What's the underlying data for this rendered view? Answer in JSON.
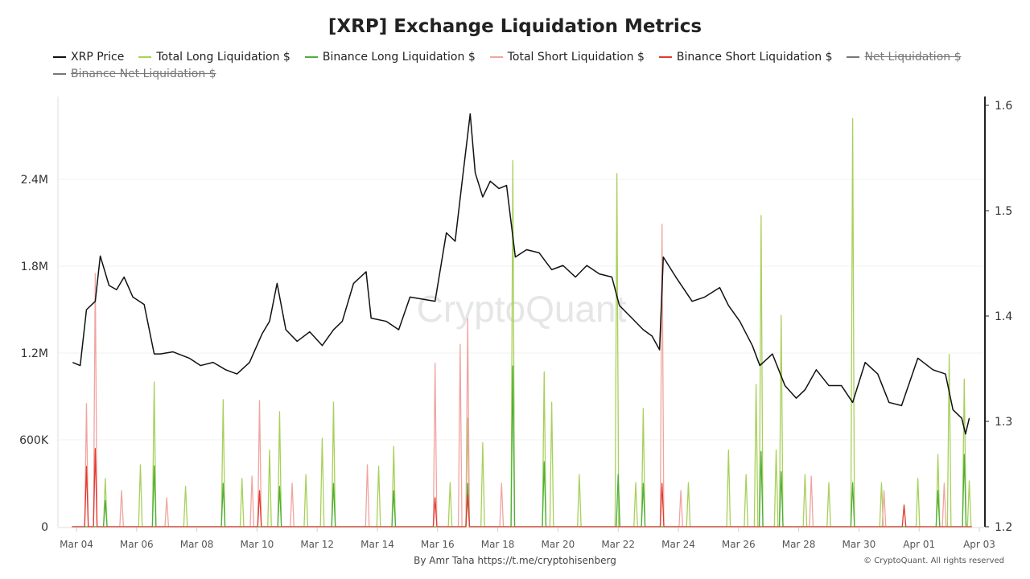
{
  "title": "[XRP] Exchange Liquidation Metrics",
  "legend": [
    {
      "label": "XRP Price",
      "color": "#111111",
      "hidden": false
    },
    {
      "label": "Total Long Liquidation $",
      "color": "#a8d05a",
      "hidden": false
    },
    {
      "label": "Binance Long Liquidation $",
      "color": "#4caf3a",
      "hidden": false
    },
    {
      "label": "Total Short Liquidation $",
      "color": "#f0a4a0",
      "hidden": false
    },
    {
      "label": "Binance Short Liquidation $",
      "color": "#e03b30",
      "hidden": false
    },
    {
      "label": "Net Liquidation $",
      "color": "#777777",
      "hidden": true
    },
    {
      "label": "Binance Net Liquidation $",
      "color": "#777777",
      "hidden": true
    }
  ],
  "watermark": "CryptoQuant",
  "credit": {
    "by": "By Amr Taha",
    "link": "https://t.me/cryptohisenberg"
  },
  "copyright": "© CryptoQuant. All rights reserved",
  "chart_data": {
    "type": "line",
    "grid": true,
    "legend_position": "top",
    "xlim": [
      "Mar 03 18:00",
      "Apr 03 06:00"
    ],
    "x_ticks": [
      "Mar 04",
      "Mar 06",
      "Mar 08",
      "Mar 10",
      "Mar 12",
      "Mar 14",
      "Mar 16",
      "Mar 18",
      "Mar 20",
      "Mar 22",
      "Mar 24",
      "Mar 26",
      "Mar 28",
      "Mar 30",
      "Apr 01",
      "Apr 03"
    ],
    "y_left": {
      "ticks": [
        0,
        600000,
        1200000,
        1800000,
        2400000
      ],
      "tick_labels": [
        "0",
        "600K",
        "1.2M",
        "1.8M",
        "2.4M"
      ],
      "range": [
        0,
        2950000
      ]
    },
    "y_right": {
      "ticks": [
        1.2,
        1.3,
        1.4,
        1.5,
        1.6
      ],
      "tick_labels": [
        "1.2",
        "1.3",
        "1.4",
        "1.5",
        "1.6"
      ],
      "range": [
        1.2,
        1.61
      ]
    },
    "series": [
      {
        "name": "XRP Price",
        "axis": "right",
        "color": "#111111",
        "points": [
          [
            "Mar 03 21:00",
            1.356
          ],
          [
            "Mar 04 03:00",
            1.353
          ],
          [
            "Mar 04 08:00",
            1.406
          ],
          [
            "Mar 04 15:00",
            1.414
          ],
          [
            "Mar 04 19:00",
            1.457
          ],
          [
            "Mar 05 02:00",
            1.429
          ],
          [
            "Mar 05 08:00",
            1.425
          ],
          [
            "Mar 05 14:00",
            1.437
          ],
          [
            "Mar 05 21:00",
            1.418
          ],
          [
            "Mar 06 06:00",
            1.411
          ],
          [
            "Mar 06 14:00",
            1.364
          ],
          [
            "Mar 06 19:00",
            1.364
          ],
          [
            "Mar 07 05:00",
            1.366
          ],
          [
            "Mar 07 18:00",
            1.36
          ],
          [
            "Mar 08 03:00",
            1.353
          ],
          [
            "Mar 08 13:00",
            1.356
          ],
          [
            "Mar 08 23:00",
            1.349
          ],
          [
            "Mar 09 08:00",
            1.345
          ],
          [
            "Mar 09 18:00",
            1.356
          ],
          [
            "Mar 10 04:00",
            1.383
          ],
          [
            "Mar 10 10:00",
            1.395
          ],
          [
            "Mar 10 16:00",
            1.431
          ],
          [
            "Mar 10 23:00",
            1.387
          ],
          [
            "Mar 11 08:00",
            1.376
          ],
          [
            "Mar 11 18:00",
            1.385
          ],
          [
            "Mar 12 04:00",
            1.372
          ],
          [
            "Mar 12 13:00",
            1.387
          ],
          [
            "Mar 12 20:00",
            1.395
          ],
          [
            "Mar 13 05:00",
            1.431
          ],
          [
            "Mar 13 15:00",
            1.442
          ],
          [
            "Mar 13 19:00",
            1.398
          ],
          [
            "Mar 14 07:00",
            1.395
          ],
          [
            "Mar 14 17:00",
            1.387
          ],
          [
            "Mar 15 02:00",
            1.418
          ],
          [
            "Mar 15 12:00",
            1.416
          ],
          [
            "Mar 15 22:00",
            1.414
          ],
          [
            "Mar 16 07:00",
            1.479
          ],
          [
            "Mar 16 14:00",
            1.471
          ],
          [
            "Mar 16 20:00",
            1.532
          ],
          [
            "Mar 17 02:00",
            1.592
          ],
          [
            "Mar 17 06:00",
            1.536
          ],
          [
            "Mar 17 12:00",
            1.513
          ],
          [
            "Mar 17 18:00",
            1.528
          ],
          [
            "Mar 18 01:00",
            1.521
          ],
          [
            "Mar 18 07:00",
            1.524
          ],
          [
            "Mar 18 14:00",
            1.456
          ],
          [
            "Mar 18 23:00",
            1.463
          ],
          [
            "Mar 19 09:00",
            1.46
          ],
          [
            "Mar 19 19:00",
            1.444
          ],
          [
            "Mar 20 04:00",
            1.448
          ],
          [
            "Mar 20 14:00",
            1.437
          ],
          [
            "Mar 20 23:00",
            1.448
          ],
          [
            "Mar 21 09:00",
            1.44
          ],
          [
            "Mar 21 19:00",
            1.437
          ],
          [
            "Mar 22 01:00",
            1.41
          ],
          [
            "Mar 22 11:00",
            1.398
          ],
          [
            "Mar 22 20:00",
            1.387
          ],
          [
            "Mar 23 03:00",
            1.381
          ],
          [
            "Mar 23 09:00",
            1.368
          ],
          [
            "Mar 23 12:00",
            1.456
          ],
          [
            "Mar 23 22:00",
            1.437
          ],
          [
            "Mar 24 11:00",
            1.414
          ],
          [
            "Mar 24 21:00",
            1.418
          ],
          [
            "Mar 25 09:00",
            1.427
          ],
          [
            "Mar 25 16:00",
            1.41
          ],
          [
            "Mar 26 01:00",
            1.395
          ],
          [
            "Mar 26 11:00",
            1.372
          ],
          [
            "Mar 26 17:00",
            1.353
          ],
          [
            "Mar 27 03:00",
            1.364
          ],
          [
            "Mar 27 13:00",
            1.334
          ],
          [
            "Mar 27 22:00",
            1.322
          ],
          [
            "Mar 28 05:00",
            1.33
          ],
          [
            "Mar 28 14:00",
            1.349
          ],
          [
            "Mar 29 00:00",
            1.334
          ],
          [
            "Mar 29 10:00",
            1.334
          ],
          [
            "Mar 29 19:00",
            1.318
          ],
          [
            "Mar 30 05:00",
            1.356
          ],
          [
            "Mar 30 15:00",
            1.345
          ],
          [
            "Mar 31 00:00",
            1.318
          ],
          [
            "Mar 31 10:00",
            1.315
          ],
          [
            "Mar 31 23:00",
            1.36
          ],
          [
            "Apr 01 11:00",
            1.349
          ],
          [
            "Apr 01 21:00",
            1.345
          ],
          [
            "Apr 02 03:00",
            1.311
          ],
          [
            "Apr 02 10:00",
            1.303
          ],
          [
            "Apr 02 13:00",
            1.288
          ],
          [
            "Apr 02 16:00",
            1.303
          ]
        ]
      },
      {
        "name": "Total Long Liquidation $",
        "axis": "left",
        "color": "#a8d05a",
        "points": [
          [
            "Mar 04 23:00",
            333000
          ],
          [
            "Mar 06 03:00",
            428000
          ],
          [
            "Mar 06 14:00",
            1000000
          ],
          [
            "Mar 07 15:00",
            280000
          ],
          [
            "Mar 08 21:00",
            878000
          ],
          [
            "Mar 09 12:00",
            333000
          ],
          [
            "Mar 10 10:00",
            530000
          ],
          [
            "Mar 10 18:00",
            795000
          ],
          [
            "Mar 11 15:00",
            360000
          ],
          [
            "Mar 12 04:00",
            611000
          ],
          [
            "Mar 12 13:00",
            861000
          ],
          [
            "Mar 14 01:00",
            420000
          ],
          [
            "Mar 14 13:00",
            555000
          ],
          [
            "Mar 16 10:00",
            305000
          ],
          [
            "Mar 17 00:00",
            750000
          ],
          [
            "Mar 17 12:00",
            580000
          ],
          [
            "Mar 18 12:00",
            2530000
          ],
          [
            "Mar 19 13:00",
            1070000
          ],
          [
            "Mar 19 19:00",
            860000
          ],
          [
            "Mar 20 17:00",
            360000
          ],
          [
            "Mar 21 23:00",
            2440000
          ],
          [
            "Mar 22 14:00",
            305000
          ],
          [
            "Mar 22 20:00",
            817000
          ],
          [
            "Mar 24 08:00",
            305000
          ],
          [
            "Mar 25 16:00",
            530000
          ],
          [
            "Mar 26 06:00",
            360000
          ],
          [
            "Mar 26 14:00",
            983000
          ],
          [
            "Mar 26 18:00",
            2150000
          ],
          [
            "Mar 27 06:00",
            530000
          ],
          [
            "Mar 27 10:00",
            1460000
          ],
          [
            "Mar 28 05:00",
            360000
          ],
          [
            "Mar 29 00:00",
            305000
          ],
          [
            "Mar 29 19:00",
            2820000
          ],
          [
            "Mar 30 18:00",
            305000
          ],
          [
            "Mar 31 23:00",
            333000
          ],
          [
            "Apr 01 15:00",
            500000
          ],
          [
            "Apr 02 00:00",
            1190000
          ],
          [
            "Apr 02 12:00",
            1020000
          ],
          [
            "Apr 02 16:00",
            317000
          ]
        ]
      },
      {
        "name": "Binance Long Liquidation $",
        "axis": "left",
        "color": "#4caf3a",
        "points": [
          [
            "Mar 04 23:00",
            180000
          ],
          [
            "Mar 06 14:00",
            420000
          ],
          [
            "Mar 08 21:00",
            300000
          ],
          [
            "Mar 10 18:00",
            280000
          ],
          [
            "Mar 12 13:00",
            300000
          ],
          [
            "Mar 14 13:00",
            250000
          ],
          [
            "Mar 17 00:00",
            300000
          ],
          [
            "Mar 18 12:00",
            1110000
          ],
          [
            "Mar 19 13:00",
            450000
          ],
          [
            "Mar 22 00:00",
            360000
          ],
          [
            "Mar 22 20:00",
            300000
          ],
          [
            "Mar 26 18:00",
            520000
          ],
          [
            "Mar 27 10:00",
            380000
          ],
          [
            "Mar 29 19:00",
            305000
          ],
          [
            "Apr 01 15:00",
            250000
          ],
          [
            "Apr 02 12:00",
            500000
          ]
        ]
      },
      {
        "name": "Total Short Liquidation $",
        "axis": "left",
        "color": "#f0a4a0",
        "points": [
          [
            "Mar 04 08:00",
            850000
          ],
          [
            "Mar 04 15:00",
            1750000
          ],
          [
            "Mar 05 12:00",
            250000
          ],
          [
            "Mar 07 00:00",
            200000
          ],
          [
            "Mar 09 20:00",
            350000
          ],
          [
            "Mar 10 02:00",
            872000
          ],
          [
            "Mar 11 04:00",
            300000
          ],
          [
            "Mar 13 16:00",
            428000
          ],
          [
            "Mar 15 22:00",
            1130000
          ],
          [
            "Mar 16 18:00",
            1260000
          ],
          [
            "Mar 17 00:00",
            1440000
          ],
          [
            "Mar 18 03:00",
            300000
          ],
          [
            "Mar 23 11:00",
            2090000
          ],
          [
            "Mar 24 02:00",
            250000
          ],
          [
            "Mar 28 10:00",
            350000
          ],
          [
            "Mar 30 20:00",
            250000
          ],
          [
            "Apr 01 20:00",
            300000
          ]
        ]
      },
      {
        "name": "Binance Short Liquidation $",
        "axis": "left",
        "color": "#e03b30",
        "points": [
          [
            "Mar 04 08:00",
            417000
          ],
          [
            "Mar 04 15:00",
            540000
          ],
          [
            "Mar 10 02:00",
            250000
          ],
          [
            "Mar 15 22:00",
            200000
          ],
          [
            "Mar 17 00:00",
            220000
          ],
          [
            "Mar 23 11:00",
            300000
          ],
          [
            "Mar 31 12:00",
            150000
          ]
        ]
      }
    ]
  }
}
